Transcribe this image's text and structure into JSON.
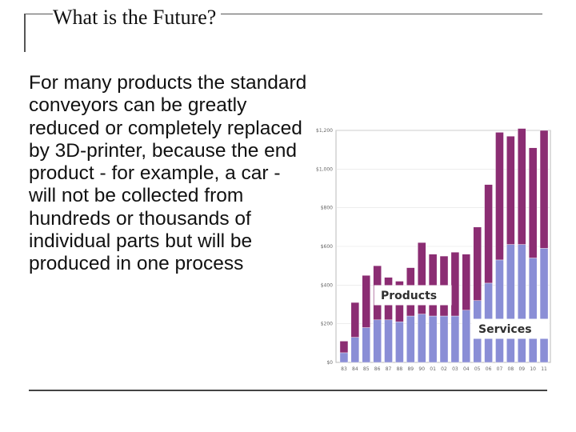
{
  "slide": {
    "title": "What is the Future?",
    "body": "For many products the standard conveyors can be greatly reduced or completely replaced by 3D-printer, because the end product - for example, a car - will not be collected from hundreds or thousands of individual parts but will be produced in one process"
  },
  "colors": {
    "services": "#8a8ed6",
    "products": "#8b2d73",
    "plot_border": "#b8b8b8",
    "grid": "#e2e2e2"
  },
  "chart_data": {
    "type": "bar",
    "stacked": true,
    "categories": [
      "83",
      "84",
      "85",
      "86",
      "87",
      "88",
      "89",
      "90",
      "01",
      "02",
      "03",
      "04",
      "05",
      "06",
      "07",
      "08",
      "09",
      "10",
      "11"
    ],
    "ylim": [
      0,
      1200
    ],
    "yticks": [
      0,
      200,
      400,
      600,
      800,
      1000,
      1200
    ],
    "ytick_labels": [
      "$0",
      "$200",
      "$400",
      "$600",
      "$800",
      "$1,000",
      "$1,200"
    ],
    "grid": true,
    "series": [
      {
        "name": "Services",
        "values": [
          50,
          130,
          180,
          220,
          220,
          210,
          240,
          250,
          240,
          240,
          240,
          270,
          320,
          410,
          530,
          610,
          610,
          540,
          590
        ]
      },
      {
        "name": "Products",
        "values": [
          60,
          180,
          270,
          280,
          220,
          210,
          250,
          370,
          320,
          310,
          330,
          290,
          380,
          510,
          660,
          560,
          600,
          570,
          610
        ]
      }
    ]
  }
}
